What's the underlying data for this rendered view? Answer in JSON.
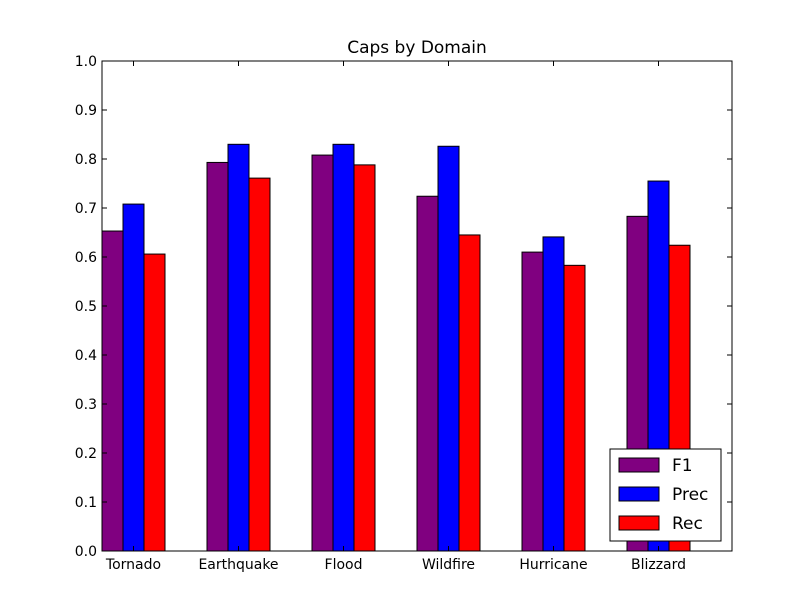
{
  "chart_data": {
    "type": "bar",
    "title": "Caps by Domain",
    "xlabel": "",
    "ylabel": "",
    "categories": [
      "Tornado",
      "Earthquake",
      "Flood",
      "Wildfire",
      "Hurricane",
      "Blizzard"
    ],
    "series": [
      {
        "name": "F1",
        "color": "#800080",
        "values": [
          0.653,
          0.793,
          0.808,
          0.724,
          0.61,
          0.683
        ]
      },
      {
        "name": "Prec",
        "color": "#0000ff",
        "values": [
          0.708,
          0.83,
          0.83,
          0.826,
          0.641,
          0.755
        ]
      },
      {
        "name": "Rec",
        "color": "#ff0000",
        "values": [
          0.606,
          0.761,
          0.788,
          0.645,
          0.583,
          0.624
        ]
      }
    ],
    "ylim": [
      0.0,
      1.0
    ],
    "yticks": [
      "0.0",
      "0.1",
      "0.2",
      "0.3",
      "0.4",
      "0.5",
      "0.6",
      "0.7",
      "0.8",
      "0.9",
      "1.0"
    ],
    "grid": false,
    "legend_position": "lower-right"
  }
}
